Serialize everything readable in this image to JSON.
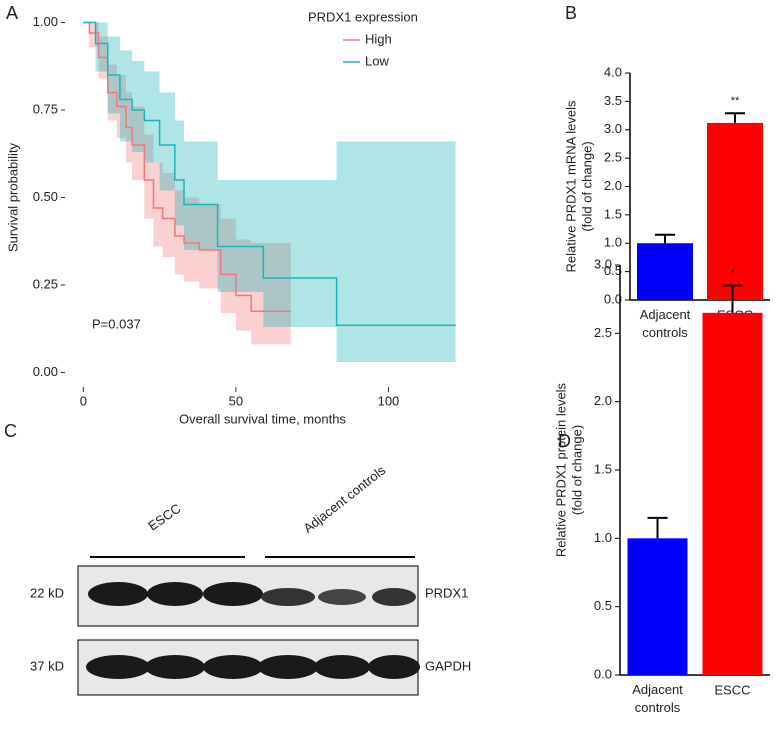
{
  "panels": [
    "A",
    "B",
    "C",
    "D"
  ],
  "chart_data": [
    {
      "type": "survival",
      "xlabel": "Overall survival time, months",
      "ylabel": "Survival probability",
      "legend_title": "PRDX1 expression",
      "annotations": [
        {
          "text": "P=0.037"
        }
      ],
      "xlim": [
        -6,
        130
      ],
      "xticks": [
        0,
        50,
        100
      ],
      "ylim": [
        -0.05,
        1.05
      ],
      "yticks": [
        {
          "value": 0,
          "label": "0.00"
        },
        {
          "value": 0.25,
          "label": "0.25"
        },
        {
          "value": 0.5,
          "label": "0.50"
        },
        {
          "value": 0.75,
          "label": "0.75"
        },
        {
          "value": 1,
          "label": "1.00"
        }
      ],
      "series": [
        {
          "name": "High",
          "color": "#f0787c",
          "x": [
            0,
            2,
            5,
            8,
            11,
            14,
            16,
            20,
            23,
            26,
            30,
            33,
            38,
            45,
            50,
            55,
            68
          ],
          "values": [
            1,
            0.97,
            0.9,
            0.8,
            0.76,
            0.7,
            0.65,
            0.55,
            0.47,
            0.44,
            0.39,
            0.37,
            0.35,
            0.28,
            0.22,
            0.175,
            0.175
          ],
          "lower": [
            1,
            0.93,
            0.84,
            0.72,
            0.67,
            0.6,
            0.55,
            0.44,
            0.36,
            0.33,
            0.28,
            0.26,
            0.24,
            0.17,
            0.12,
            0.08,
            0.08
          ],
          "upper": [
            1,
            1,
            0.96,
            0.88,
            0.85,
            0.8,
            0.76,
            0.68,
            0.6,
            0.57,
            0.52,
            0.5,
            0.48,
            0.44,
            0.38,
            0.37,
            0.37
          ]
        },
        {
          "name": "Low",
          "color": "#19b5b8",
          "x": [
            0,
            4,
            8,
            12,
            16,
            20,
            25,
            30,
            33,
            40,
            44,
            48,
            52,
            59,
            83,
            122
          ],
          "values": [
            1,
            0.94,
            0.85,
            0.78,
            0.75,
            0.72,
            0.65,
            0.55,
            0.48,
            0.48,
            0.36,
            0.36,
            0.36,
            0.27,
            0.135,
            0.135
          ],
          "lower": [
            1,
            0.86,
            0.74,
            0.66,
            0.63,
            0.6,
            0.52,
            0.42,
            0.35,
            0.35,
            0.23,
            0.23,
            0.23,
            0.13,
            0.03,
            0.03
          ],
          "upper": [
            1,
            1,
            0.96,
            0.92,
            0.89,
            0.86,
            0.8,
            0.72,
            0.66,
            0.66,
            0.55,
            0.55,
            0.55,
            0.55,
            0.66,
            0.66
          ]
        }
      ]
    },
    {
      "type": "bar",
      "ylabel": [
        "Relative PRDX1 mRNA levels",
        "(fold of change)"
      ],
      "categories": [
        "Adjacent controls",
        "ESCC"
      ],
      "values": [
        1.0,
        3.12
      ],
      "errors": [
        0.15,
        0.17
      ],
      "colors": [
        "#0000ff",
        "#ff0000"
      ],
      "annotations": [
        {
          "text": "**",
          "x": "ESCC"
        }
      ],
      "ylim": [
        0,
        4
      ],
      "yticks": [
        {
          "value": 0,
          "label": "0.0"
        },
        {
          "value": 0.5,
          "label": "0.5"
        },
        {
          "value": 1,
          "label": "1.0"
        },
        {
          "value": 1.5,
          "label": "1.5"
        },
        {
          "value": 2,
          "label": "2.0"
        },
        {
          "value": 2.5,
          "label": "2.5"
        },
        {
          "value": 3,
          "label": "3.0"
        },
        {
          "value": 3.5,
          "label": "3.5"
        },
        {
          "value": 4,
          "label": "4.0"
        }
      ]
    },
    {
      "type": "bar",
      "ylabel": [
        "Relative PRDX1 protein levels",
        "(fold of change)"
      ],
      "categories": [
        "Adjacent controls",
        "ESCC"
      ],
      "values": [
        1.0,
        2.65
      ],
      "errors": [
        0.15,
        0.2
      ],
      "colors": [
        "#0000ff",
        "#ff0000"
      ],
      "annotations": [
        {
          "text": "*",
          "x": "ESCC"
        }
      ],
      "ylim": [
        0,
        3
      ],
      "yticks": [
        {
          "value": 0,
          "label": "0.0"
        },
        {
          "value": 0.5,
          "label": "0.5"
        },
        {
          "value": 1,
          "label": "1.0"
        },
        {
          "value": 1.5,
          "label": "1.5"
        },
        {
          "value": 2,
          "label": "2.0"
        },
        {
          "value": 2.5,
          "label": "2.5"
        },
        {
          "value": 3,
          "label": "3.0"
        }
      ]
    }
  ],
  "blot": {
    "groups": [
      "ESCC",
      "Adjacent controls"
    ],
    "rows": [
      {
        "size": "22 kD",
        "protein": "PRDX1"
      },
      {
        "size": "37 kD",
        "protein": "GAPDH"
      }
    ]
  }
}
